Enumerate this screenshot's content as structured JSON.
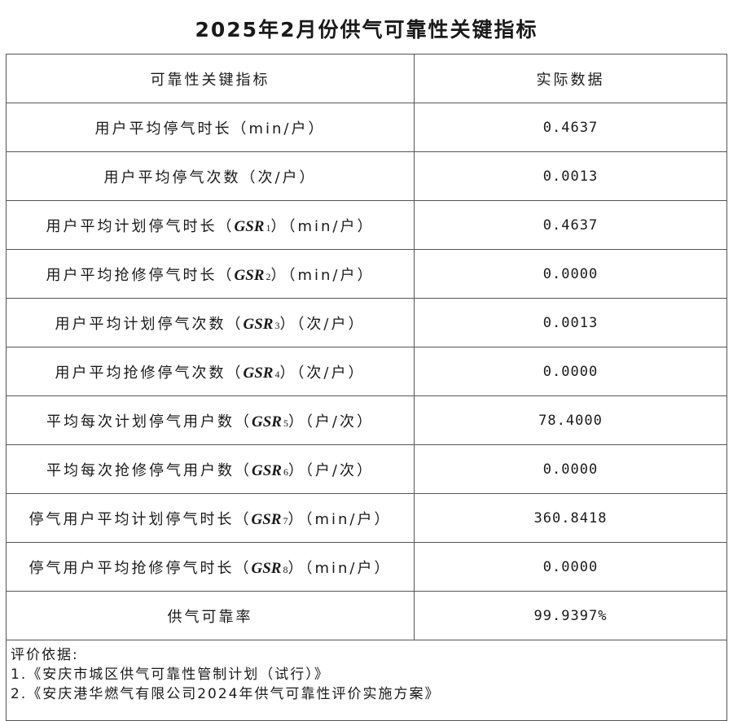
{
  "title": "2025年2月份供气可靠性关键指标",
  "header": {
    "col1": "可靠性关键指标",
    "col2": "实际数据"
  },
  "rows": [
    {
      "pre": "用户平均停气时长（min/户）",
      "code": "",
      "sub": "",
      "post": "",
      "value": "0.4637"
    },
    {
      "pre": "用户平均停气次数（次/户）",
      "code": "",
      "sub": "",
      "post": "",
      "value": "0.0013"
    },
    {
      "pre": "用户平均计划停气时长（",
      "code": "GSR",
      "sub": "1",
      "post": "）（min/户）",
      "value": "0.4637"
    },
    {
      "pre": "用户平均抢修停气时长（",
      "code": "GSR",
      "sub": "2",
      "post": "）（min/户）",
      "value": "0.0000"
    },
    {
      "pre": "用户平均计划停气次数（",
      "code": "GSR",
      "sub": "3",
      "post": "）（次/户）",
      "value": "0.0013"
    },
    {
      "pre": "用户平均抢修停气次数（",
      "code": "GSR",
      "sub": "4",
      "post": "）（次/户）",
      "value": "0.0000"
    },
    {
      "pre": "平均每次计划停气用户数（",
      "code": "GSR",
      "sub": "5",
      "post": "）（户/次）",
      "value": "78.4000"
    },
    {
      "pre": "平均每次抢修停气用户数（",
      "code": "GSR",
      "sub": "6",
      "post": "）（户/次）",
      "value": "0.0000"
    },
    {
      "pre": "停气用户平均计划停气时长（",
      "code": "GSR",
      "sub": "7",
      "post": "）（min/户）",
      "value": "360.8418"
    },
    {
      "pre": "停气用户平均抢修停气时长（",
      "code": "GSR",
      "sub": "8",
      "post": "）（min/户）",
      "value": "0.0000"
    },
    {
      "pre": "供气可靠率",
      "code": "",
      "sub": "",
      "post": "",
      "value": "99.9397%"
    }
  ],
  "footer": {
    "heading": "评价依据:",
    "items": [
      "1.《安庆市城区供气可靠性管制计划（试行）》",
      "2.《安庆港华燃气有限公司2024年供气可靠性评价实施方案》"
    ]
  }
}
